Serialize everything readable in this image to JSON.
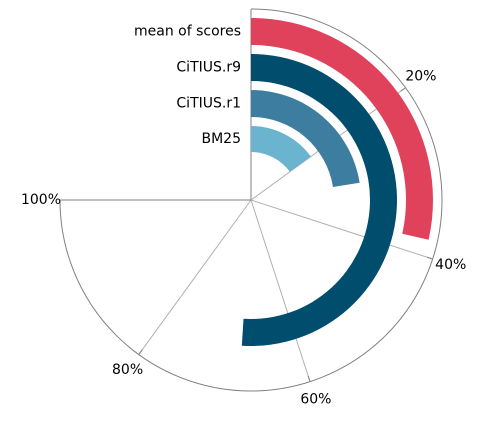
{
  "chart_data": {
    "type": "radial_bar",
    "angle_axis": {
      "ticks": [
        {
          "value": 20,
          "label": "20%"
        },
        {
          "value": 40,
          "label": "40%"
        },
        {
          "value": 60,
          "label": "60%"
        },
        {
          "value": 80,
          "label": "80%"
        },
        {
          "value": 100,
          "label": "100%"
        }
      ],
      "range": [
        0,
        100
      ],
      "start": "top",
      "direction": "clockwise"
    },
    "series": [
      {
        "name": "BM25",
        "value": 20,
        "color": "#6ab4d0"
      },
      {
        "name": "CiTIUS.r1",
        "value": 30,
        "color": "#3d7ea0"
      },
      {
        "name": "CiTIUS.r9",
        "value": 68,
        "color": "#004d6d"
      },
      {
        "name": "mean of scores",
        "value": 38,
        "color": "#e0425c"
      }
    ],
    "grid": true
  }
}
